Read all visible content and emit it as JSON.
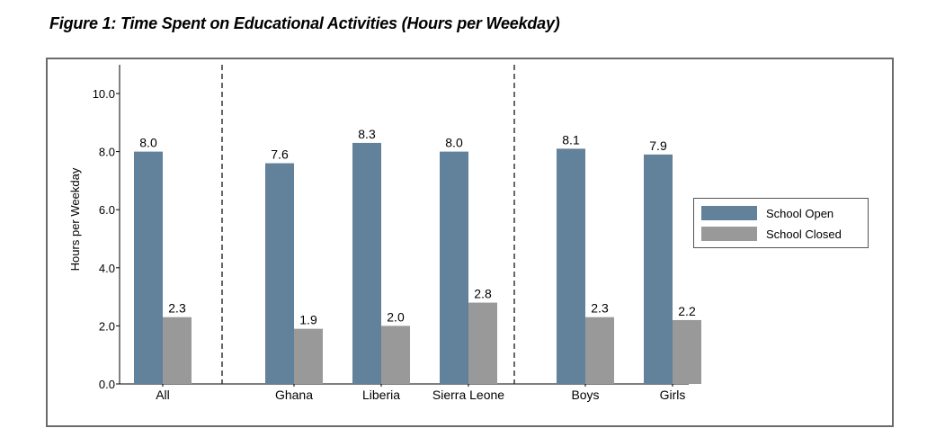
{
  "figure": {
    "title": "Figure 1: Time Spent on Educational Activities (Hours per Weekday)"
  },
  "colors": {
    "school_open": "#62819a",
    "school_closed": "#999999",
    "axis": "#000000",
    "separator": "#333333"
  },
  "chart_data": {
    "type": "bar",
    "title": "Figure 1: Time Spent on Educational Activities (Hours per Weekday)",
    "xlabel": "",
    "ylabel": "Hours per Weekday",
    "ylim": [
      0,
      11
    ],
    "yticks": [
      0,
      2,
      4,
      6,
      8,
      10
    ],
    "ytick_labels": [
      "0.0",
      "2.0",
      "4.0",
      "6.0",
      "8.0",
      "10.0"
    ],
    "grid": false,
    "categories": [
      "All",
      "Ghana",
      "Liberia",
      "Sierra Leone",
      "Boys",
      "Girls"
    ],
    "groups": [
      [
        "All"
      ],
      [
        "Ghana",
        "Liberia",
        "Sierra Leone"
      ],
      [
        "Boys",
        "Girls"
      ]
    ],
    "separators": "dashed vertical lines between groups",
    "series": [
      {
        "name": "School Open",
        "values": [
          8.0,
          7.6,
          8.3,
          8.0,
          8.1,
          7.9
        ],
        "labels": [
          "8.0",
          "7.6",
          "8.3",
          "8.0",
          "8.1",
          "7.9"
        ]
      },
      {
        "name": "School Closed",
        "values": [
          2.3,
          1.9,
          2.0,
          2.8,
          2.3,
          2.2
        ],
        "labels": [
          "2.3",
          "1.9",
          "2.0",
          "2.8",
          "2.3",
          "2.2"
        ]
      }
    ],
    "legend": {
      "position": "right",
      "entries": [
        "School Open",
        "School Closed"
      ]
    }
  }
}
